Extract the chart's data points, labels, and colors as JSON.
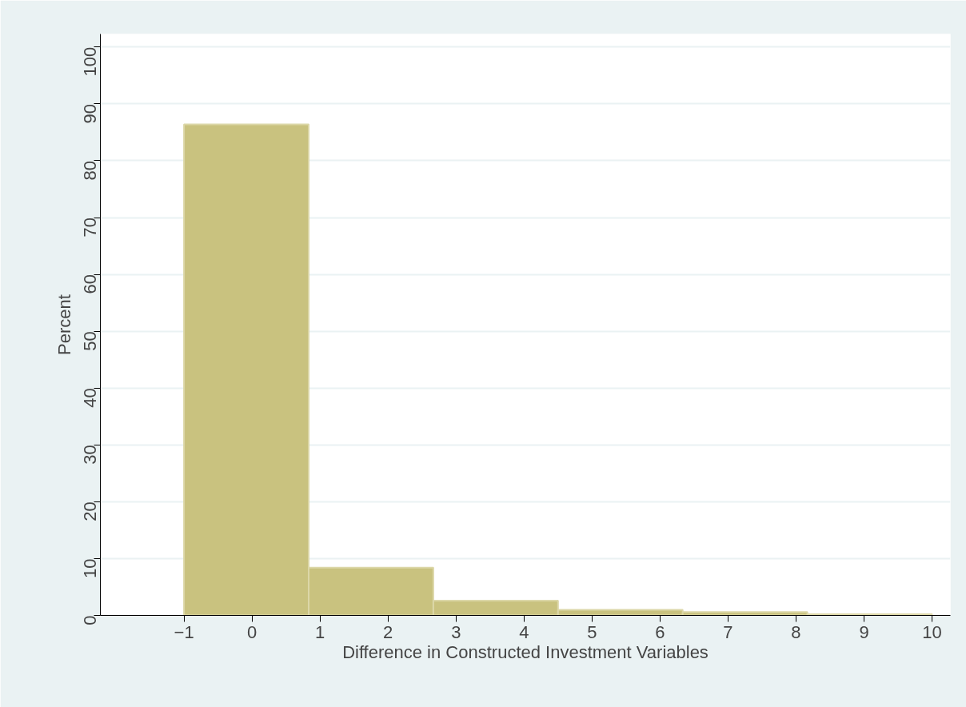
{
  "chart_data": {
    "type": "histogram",
    "xlabel": "Difference in Constructed Investment Variables",
    "ylabel": "Percent",
    "bins": [
      -1,
      0.8333,
      2.6667,
      4.5,
      6.3333,
      8.1667,
      10
    ],
    "values": [
      86.4,
      8.4,
      2.6,
      1.0,
      0.6,
      0.2
    ],
    "color": "#c9c27f",
    "xlim": [
      -2.23,
      10.27
    ],
    "ylim": [
      0,
      102.3
    ],
    "xticks": [
      -1,
      0,
      1,
      2,
      3,
      4,
      5,
      6,
      7,
      8,
      9,
      10
    ],
    "yticks": [
      0,
      10,
      20,
      30,
      40,
      50,
      60,
      70,
      80,
      90,
      100
    ],
    "grid": "y"
  }
}
